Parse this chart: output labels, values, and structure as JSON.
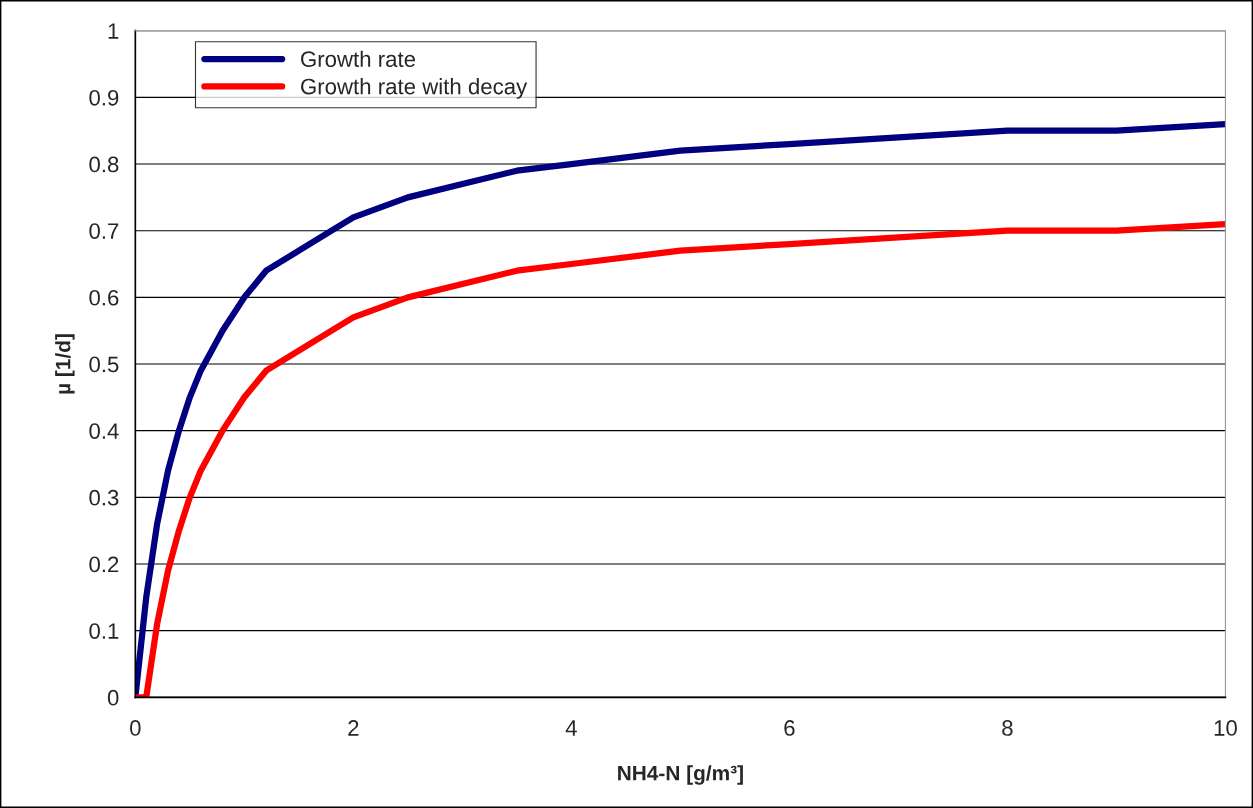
{
  "chart_data": {
    "type": "line",
    "xlabel": "NH4-N [g/m³]",
    "ylabel": "µ [1/d]",
    "x": [
      0,
      0.1,
      0.2,
      0.3,
      0.4,
      0.5,
      0.6,
      0.8,
      1,
      1.2,
      1.5,
      1.8,
      2,
      2.5,
      3,
      3.5,
      4,
      5,
      6,
      7,
      8,
      9,
      10
    ],
    "series": [
      {
        "name": "Growth rate",
        "color": "#000080",
        "values": [
          0,
          0.15,
          0.26,
          0.34,
          0.4,
          0.45,
          0.49,
          0.55,
          0.6,
          0.64,
          0.67,
          0.7,
          0.72,
          0.75,
          0.77,
          0.79,
          0.8,
          0.82,
          0.83,
          0.84,
          0.85,
          0.85,
          0.86
        ]
      },
      {
        "name": "Growth rate with decay",
        "color": "#ff0000",
        "values": [
          0,
          0,
          0.11,
          0.19,
          0.25,
          0.3,
          0.34,
          0.4,
          0.45,
          0.49,
          0.52,
          0.55,
          0.57,
          0.6,
          0.62,
          0.64,
          0.65,
          0.67,
          0.68,
          0.69,
          0.7,
          0.7,
          0.71
        ]
      }
    ],
    "xlim": [
      0,
      10
    ],
    "xticks": [
      0,
      2,
      4,
      6,
      8,
      10
    ],
    "ylim": [
      0,
      1
    ],
    "yticks": [
      0,
      0.1,
      0.2,
      0.3,
      0.4,
      0.5,
      0.6,
      0.7,
      0.8,
      0.9,
      1
    ],
    "grid": "y",
    "legend": "top left",
    "line_style": "solid",
    "marker": "none"
  }
}
